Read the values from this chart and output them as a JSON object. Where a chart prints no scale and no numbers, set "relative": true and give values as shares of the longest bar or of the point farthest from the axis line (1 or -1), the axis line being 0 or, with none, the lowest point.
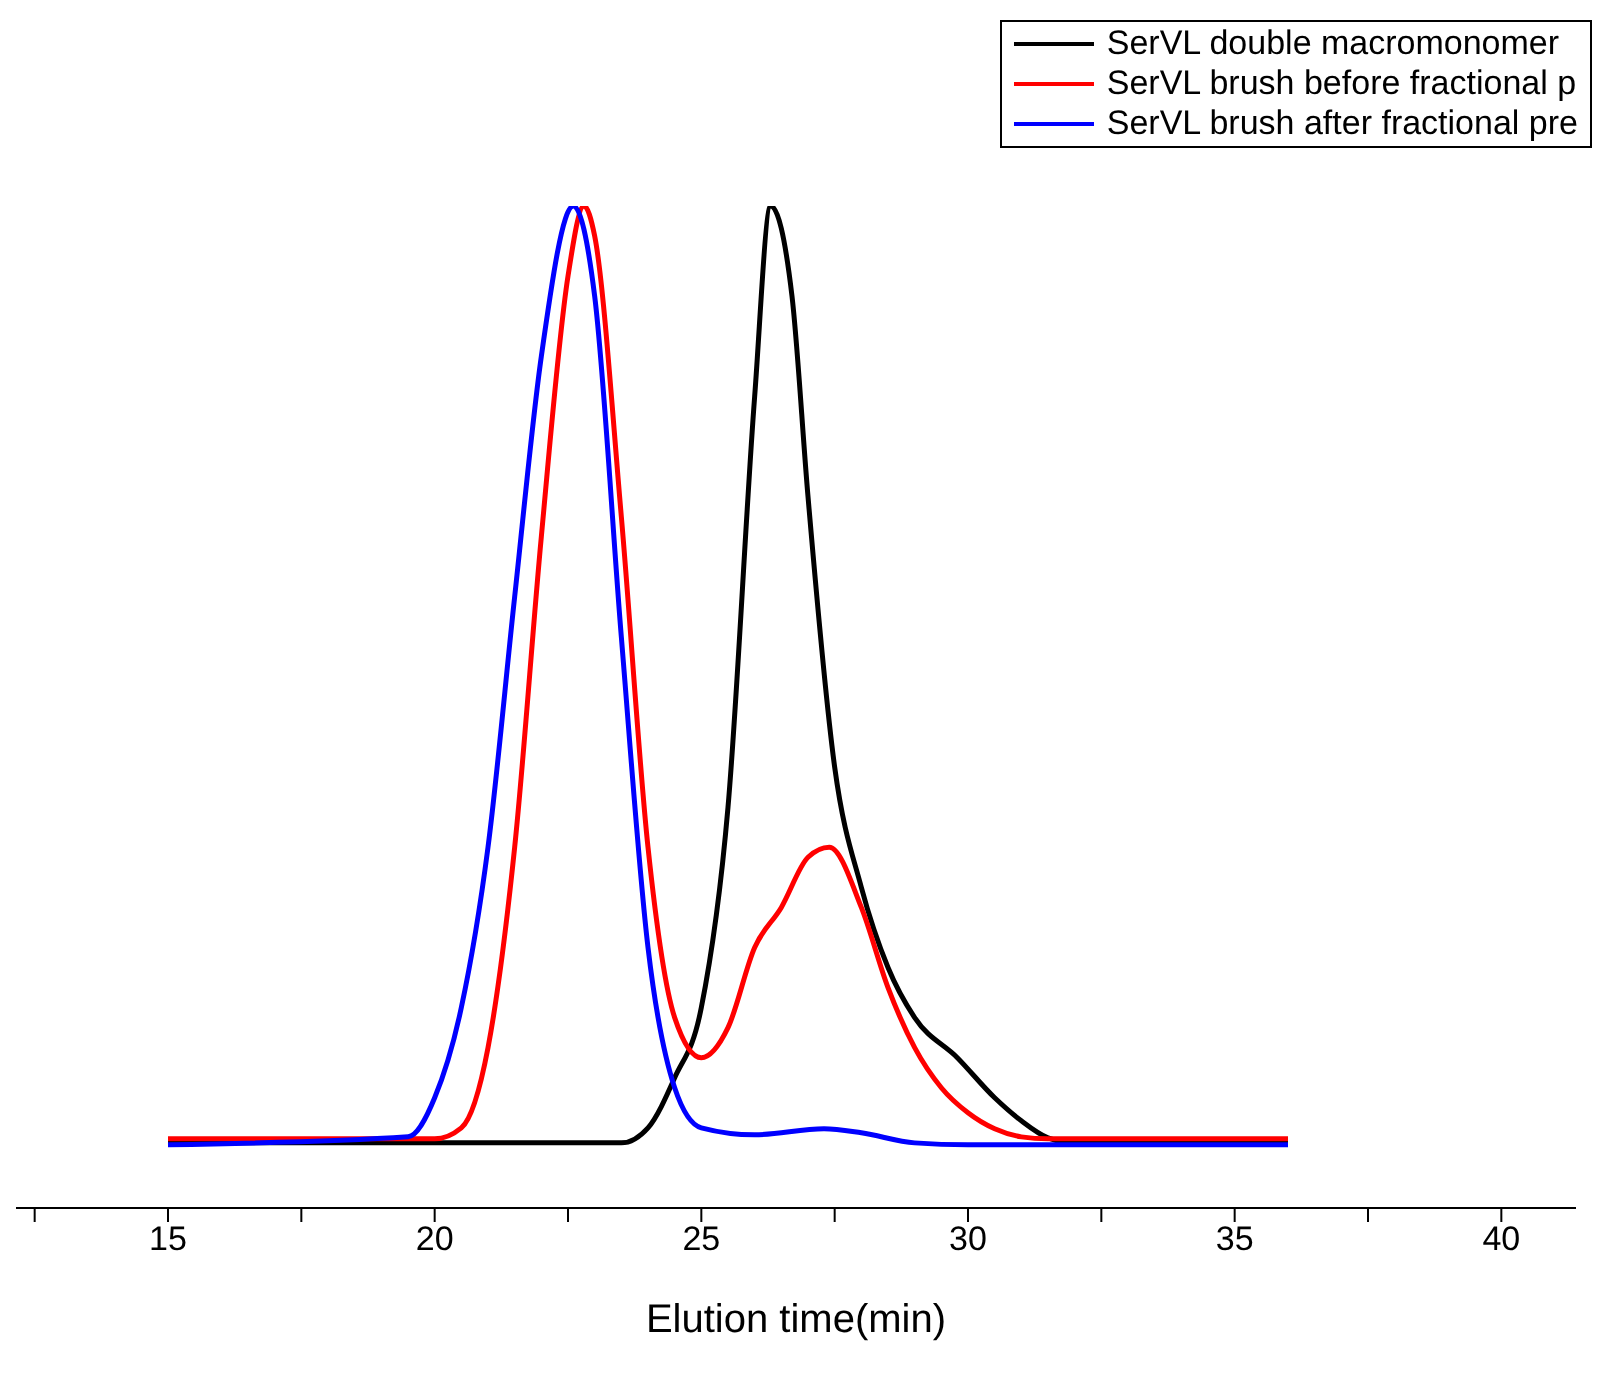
{
  "chart_data": {
    "type": "line",
    "relative": true,
    "xlabel": "Elution time(min)",
    "legend": "top right",
    "grid": false,
    "marker": "none",
    "line_style": "solid",
    "xlim": [
      12.15,
      41.4
    ],
    "xticks": [
      {
        "value": 12.5,
        "label": null
      },
      15,
      {
        "value": 17.5,
        "label": null
      },
      20,
      {
        "value": 22.5,
        "label": null
      },
      25,
      {
        "value": 27.5,
        "label": null
      },
      30,
      {
        "value": 32.5,
        "label": null
      },
      35,
      {
        "value": 37.5,
        "label": null
      },
      40
    ],
    "series": [
      {
        "name": "SerVL double macromonomer",
        "color": "#000000",
        "x": [
          15,
          20,
          23.5,
          24,
          24.5,
          25,
          25.5,
          26,
          26.3,
          26.7,
          27,
          27.5,
          28,
          28.5,
          29,
          29.8,
          30.5,
          31,
          31.5,
          32,
          36
        ],
        "values": [
          0.065,
          0.065,
          0.065,
          0.08,
          0.13,
          0.2,
          0.4,
          0.81,
          1,
          0.91,
          0.71,
          0.44,
          0.32,
          0.24,
          0.19,
          0.15,
          0.11,
          0.087,
          0.07,
          0.065,
          0.065
        ]
      },
      {
        "name": "SerVL brush before fractional p",
        "color": "#ff0000",
        "x": [
          15,
          20,
          20.5,
          21,
          21.5,
          22,
          22.5,
          22.8,
          23,
          23.5,
          24,
          24.5,
          25,
          25.5,
          26,
          26.5,
          27,
          27.4,
          28,
          28.5,
          29,
          29.5,
          30,
          30.5,
          31,
          31.5,
          36
        ],
        "values": [
          0.069,
          0.069,
          0.08,
          0.16,
          0.36,
          0.67,
          0.93,
          1,
          0.97,
          0.69,
          0.36,
          0.19,
          0.15,
          0.18,
          0.26,
          0.3,
          0.35,
          0.36,
          0.3,
          0.22,
          0.16,
          0.12,
          0.095,
          0.079,
          0.071,
          0.069,
          0.069
        ]
      },
      {
        "name": "SerVL brush after fractional pre",
        "color": "#0000ff",
        "x": [
          15,
          19.5,
          20,
          20.5,
          21,
          21.5,
          22,
          22.6,
          23,
          23.5,
          24,
          24.5,
          25,
          26,
          27.3,
          28,
          29,
          30,
          36
        ],
        "values": [
          0.063,
          0.071,
          0.11,
          0.2,
          0.36,
          0.61,
          0.85,
          1,
          0.91,
          0.57,
          0.26,
          0.12,
          0.08,
          0.073,
          0.079,
          0.075,
          0.065,
          0.063,
          0.063
        ]
      }
    ]
  }
}
